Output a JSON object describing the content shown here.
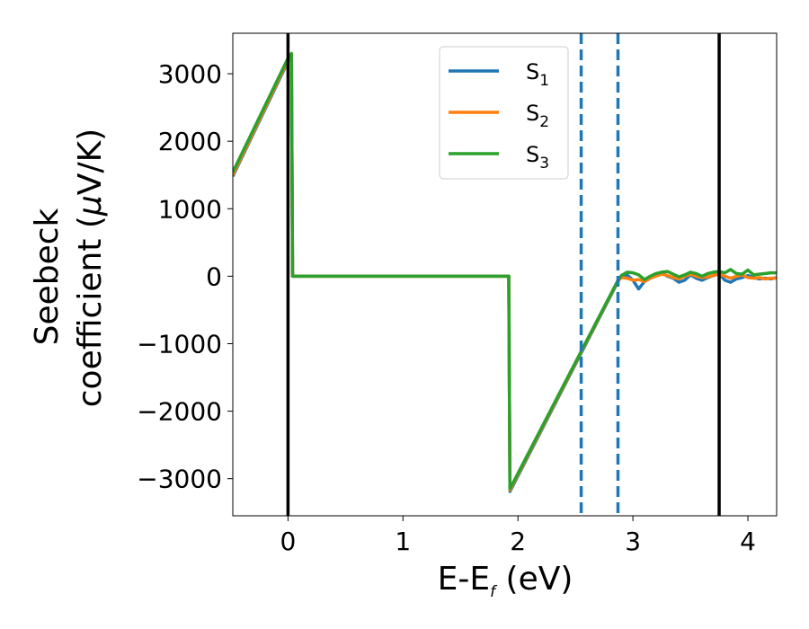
{
  "chart_data": {
    "type": "line",
    "xlabel": "E-E",
    "xlabel_sub": "f",
    "xlabel_unit": " (eV)",
    "ylabel_line1": "Seebeck",
    "ylabel_line2": "coefficient  (",
    "ylabel_mu": "μ",
    "ylabel_unit": "V/K)",
    "xlim": [
      -0.48,
      4.25
    ],
    "ylim": [
      -3550,
      3600
    ],
    "xticks": [
      0,
      1,
      2,
      3,
      4
    ],
    "xtick_labels": [
      "0",
      "1",
      "2",
      "3",
      "4"
    ],
    "yticks": [
      -3000,
      -2000,
      -1000,
      0,
      1000,
      2000,
      3000
    ],
    "ytick_labels": [
      "−3000",
      "−2000",
      "−1000",
      "0",
      "1000",
      "2000",
      "3000"
    ],
    "grid": false,
    "legend_position": "top-center",
    "vertical_lines": [
      {
        "x": 0.0,
        "style": "solid",
        "color": "#000000"
      },
      {
        "x": 3.75,
        "style": "solid",
        "color": "#000000"
      },
      {
        "x": 2.55,
        "style": "dashed",
        "color": "#1f77b4"
      },
      {
        "x": 2.87,
        "style": "dashed",
        "color": "#1f77b4"
      }
    ],
    "series": [
      {
        "name": "S",
        "name_sub": "1",
        "color": "#1f77b4",
        "x": [
          -0.48,
          0.0,
          0.03,
          0.04,
          1.92,
          1.93,
          2.87,
          2.9,
          2.95,
          3.0,
          3.05,
          3.1,
          3.15,
          3.2,
          3.25,
          3.3,
          3.35,
          3.4,
          3.45,
          3.5,
          3.55,
          3.6,
          3.65,
          3.7,
          3.75,
          3.8,
          3.85,
          3.9,
          3.95,
          4.0,
          4.05,
          4.1,
          4.15,
          4.2,
          4.25
        ],
        "y": [
          1480,
          3180,
          3290,
          0,
          0,
          -3190,
          -80,
          0,
          20,
          -60,
          -190,
          -80,
          -30,
          10,
          60,
          0,
          -30,
          -90,
          -60,
          20,
          -30,
          -60,
          -20,
          10,
          40,
          -60,
          -90,
          -40,
          -20,
          10,
          -20,
          -40,
          -30,
          -40,
          -20
        ]
      },
      {
        "name": "S",
        "name_sub": "2",
        "color": "#ff7f0e",
        "x": [
          -0.48,
          0.0,
          0.03,
          0.04,
          1.92,
          1.93,
          2.87,
          2.9,
          2.95,
          3.0,
          3.05,
          3.1,
          3.15,
          3.2,
          3.25,
          3.3,
          3.35,
          3.4,
          3.45,
          3.5,
          3.55,
          3.6,
          3.65,
          3.7,
          3.75,
          3.8,
          3.85,
          3.9,
          3.95,
          4.0,
          4.05,
          4.1,
          4.15,
          4.2,
          4.25
        ],
        "y": [
          1500,
          3200,
          3290,
          0,
          0,
          -3170,
          -70,
          -20,
          -30,
          -60,
          -50,
          -80,
          -30,
          0,
          30,
          10,
          -20,
          -40,
          0,
          30,
          0,
          -20,
          -10,
          10,
          30,
          0,
          -30,
          0,
          20,
          -20,
          -30,
          -20,
          -40,
          -30,
          -30
        ]
      },
      {
        "name": "S",
        "name_sub": "3",
        "color": "#2ca02c",
        "x": [
          -0.48,
          0.0,
          0.03,
          0.04,
          1.92,
          1.93,
          2.87,
          2.9,
          2.95,
          3.0,
          3.05,
          3.1,
          3.15,
          3.2,
          3.25,
          3.3,
          3.35,
          3.4,
          3.45,
          3.5,
          3.55,
          3.6,
          3.65,
          3.7,
          3.75,
          3.8,
          3.85,
          3.9,
          3.95,
          4.0,
          4.05,
          4.1,
          4.15,
          4.2,
          4.25
        ],
        "y": [
          1540,
          3230,
          3300,
          0,
          0,
          -3150,
          -60,
          10,
          60,
          50,
          20,
          -50,
          0,
          40,
          60,
          70,
          30,
          -10,
          20,
          60,
          40,
          0,
          40,
          60,
          70,
          50,
          100,
          40,
          30,
          90,
          20,
          30,
          40,
          50,
          50
        ]
      }
    ]
  }
}
